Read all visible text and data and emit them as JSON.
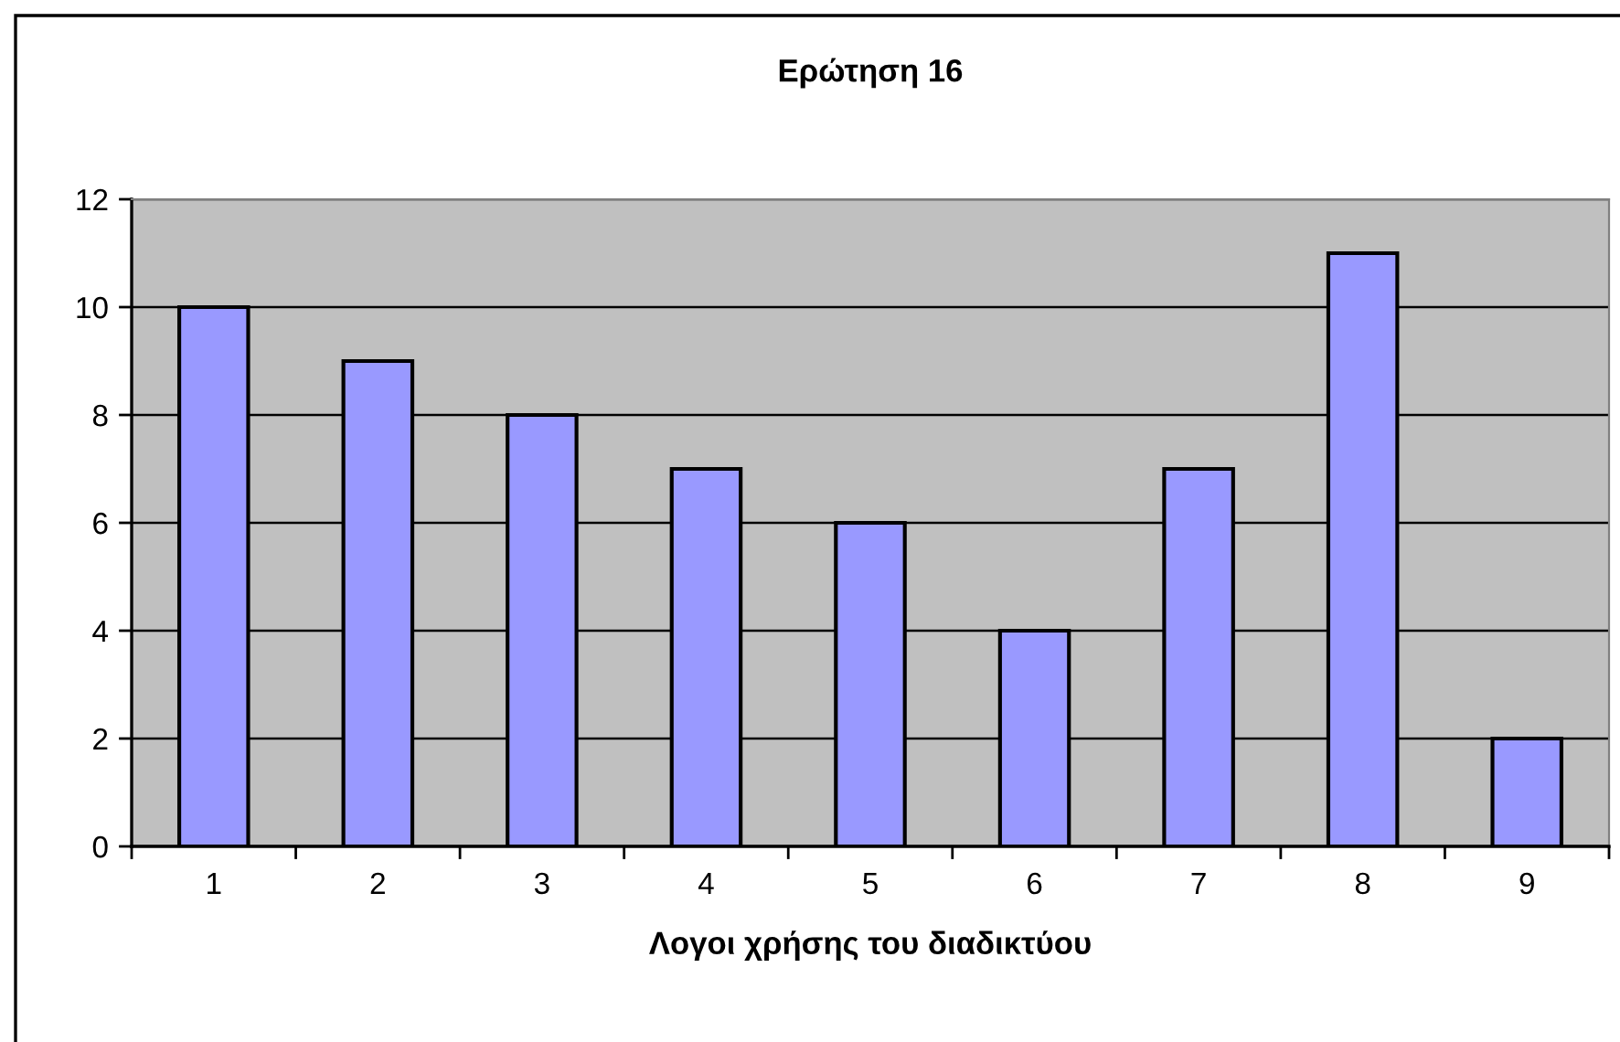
{
  "chart_data": {
    "type": "bar",
    "title": "Ερώτηση 16",
    "xlabel": "Λογοι χρήσης του διαδικτύου",
    "categories": [
      "1",
      "2",
      "3",
      "4",
      "5",
      "6",
      "7",
      "8",
      "9"
    ],
    "values": [
      10,
      9,
      8,
      7,
      6,
      4,
      7,
      11,
      2
    ],
    "color": "#9999ff",
    "ylim": [
      0,
      12
    ],
    "yticks": [
      0,
      2,
      4,
      6,
      8,
      10,
      12
    ],
    "grid": "y",
    "legend": false
  }
}
